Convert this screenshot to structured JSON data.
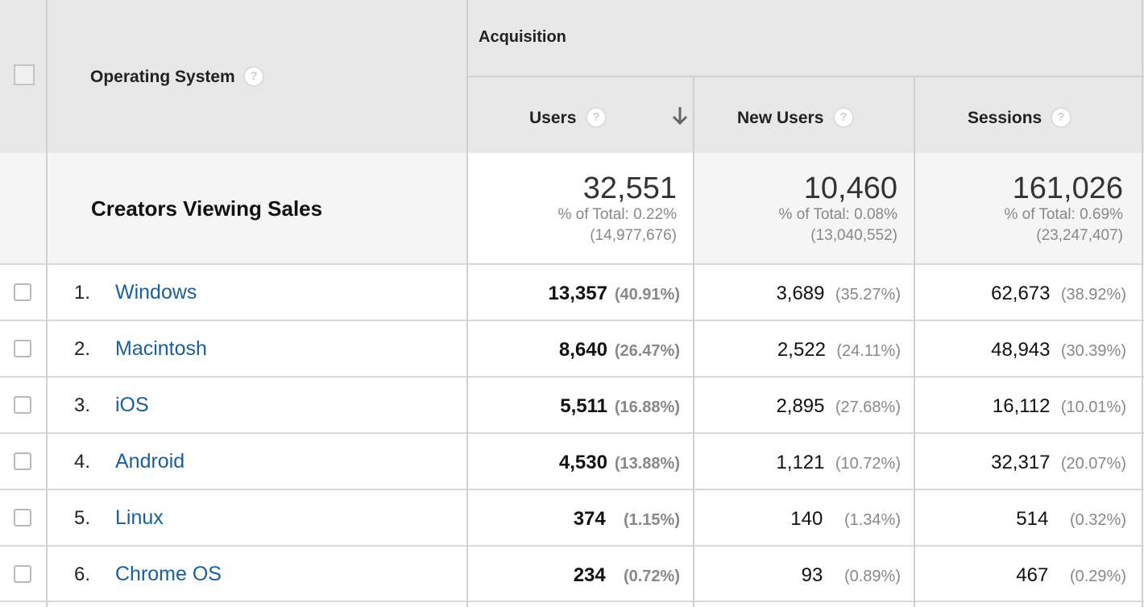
{
  "header": {
    "dimension_label": "Operating System",
    "group_label": "Acquisition",
    "columns": {
      "users": "Users",
      "new_users": "New Users",
      "sessions": "Sessions"
    },
    "help_glyph": "?"
  },
  "totals": {
    "label": "Creators Viewing Sales",
    "users": {
      "value": "32,551",
      "pct": "% of Total: 0.22%",
      "total": "(14,977,676)"
    },
    "new_users": {
      "value": "10,460",
      "pct": "% of Total: 0.08%",
      "total": "(13,040,552)"
    },
    "sessions": {
      "value": "161,026",
      "pct": "% of Total: 0.69%",
      "total": "(23,247,407)"
    }
  },
  "rows": [
    {
      "num": "1.",
      "name": "Windows",
      "users": "13,357",
      "users_pct": "(40.91%)",
      "new_users": "3,689",
      "new_users_pct": "(35.27%)",
      "sessions": "62,673",
      "sessions_pct": "(38.92%)"
    },
    {
      "num": "2.",
      "name": "Macintosh",
      "users": "8,640",
      "users_pct": "(26.47%)",
      "new_users": "2,522",
      "new_users_pct": "(24.11%)",
      "sessions": "48,943",
      "sessions_pct": "(30.39%)"
    },
    {
      "num": "3.",
      "name": "iOS",
      "users": "5,511",
      "users_pct": "(16.88%)",
      "new_users": "2,895",
      "new_users_pct": "(27.68%)",
      "sessions": "16,112",
      "sessions_pct": "(10.01%)"
    },
    {
      "num": "4.",
      "name": "Android",
      "users": "4,530",
      "users_pct": "(13.88%)",
      "new_users": "1,121",
      "new_users_pct": "(10.72%)",
      "sessions": "32,317",
      "sessions_pct": "(20.07%)"
    },
    {
      "num": "5.",
      "name": "Linux",
      "users": "374",
      "users_pct": "(1.15%)",
      "new_users": "140",
      "new_users_pct": "(1.34%)",
      "sessions": "514",
      "sessions_pct": "(0.32%)"
    },
    {
      "num": "6.",
      "name": "Chrome OS",
      "users": "234",
      "users_pct": "(0.72%)",
      "new_users": "93",
      "new_users_pct": "(0.89%)",
      "sessions": "467",
      "sessions_pct": "(0.29%)"
    }
  ],
  "icons": {
    "help": "help-icon",
    "sort": "sort-descending-icon",
    "checkbox": "checkbox-icon"
  },
  "colors": {
    "link": "#1a5e9a",
    "header_bg": "#e8e8e8",
    "muted_text": "#888888"
  }
}
